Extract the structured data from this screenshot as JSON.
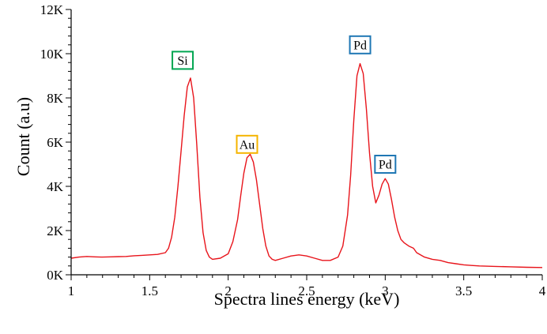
{
  "chart_data": {
    "type": "line",
    "title": "",
    "xlabel": "Spectra lines energy (keV)",
    "ylabel": "Count (a.u)",
    "xlim": [
      1,
      4
    ],
    "ylim": [
      0,
      12000
    ],
    "x_ticks": [
      {
        "value": 1,
        "label": "1"
      },
      {
        "value": 1.5,
        "label": "1.5"
      },
      {
        "value": 2,
        "label": "2"
      },
      {
        "value": 2.5,
        "label": "2.5"
      },
      {
        "value": 3,
        "label": "3"
      },
      {
        "value": 3.5,
        "label": "3.5"
      },
      {
        "value": 4,
        "label": "4"
      }
    ],
    "y_ticks": [
      {
        "value": 0,
        "label": "0K"
      },
      {
        "value": 2000,
        "label": "2K"
      },
      {
        "value": 4000,
        "label": "4K"
      },
      {
        "value": 6000,
        "label": "6K"
      },
      {
        "value": 8000,
        "label": "8K"
      },
      {
        "value": 10000,
        "label": "10K"
      },
      {
        "value": 12000,
        "label": "12K"
      }
    ],
    "grid": false,
    "legend": "none",
    "series": [
      {
        "color": "#e8141b",
        "x": [
          1.0,
          1.05,
          1.1,
          1.15,
          1.2,
          1.25,
          1.3,
          1.35,
          1.4,
          1.45,
          1.5,
          1.55,
          1.6,
          1.62,
          1.64,
          1.66,
          1.68,
          1.7,
          1.72,
          1.74,
          1.76,
          1.78,
          1.8,
          1.82,
          1.84,
          1.86,
          1.88,
          1.9,
          1.95,
          2.0,
          2.03,
          2.06,
          2.08,
          2.1,
          2.12,
          2.14,
          2.16,
          2.18,
          2.2,
          2.22,
          2.24,
          2.26,
          2.28,
          2.3,
          2.35,
          2.4,
          2.45,
          2.5,
          2.55,
          2.6,
          2.65,
          2.7,
          2.73,
          2.76,
          2.78,
          2.8,
          2.82,
          2.84,
          2.86,
          2.88,
          2.9,
          2.92,
          2.94,
          2.96,
          2.98,
          3.0,
          3.02,
          3.04,
          3.06,
          3.08,
          3.1,
          3.12,
          3.15,
          3.18,
          3.2,
          3.25,
          3.3,
          3.35,
          3.4,
          3.45,
          3.5,
          3.55,
          3.6,
          3.7,
          3.8,
          3.9,
          4.0
        ],
        "y": [
          750,
          800,
          830,
          810,
          800,
          810,
          820,
          830,
          860,
          880,
          900,
          920,
          1000,
          1200,
          1700,
          2600,
          4000,
          5600,
          7200,
          8500,
          8900,
          8000,
          5900,
          3500,
          1900,
          1100,
          800,
          700,
          750,
          950,
          1500,
          2500,
          3600,
          4600,
          5300,
          5450,
          5100,
          4300,
          3200,
          2100,
          1300,
          850,
          700,
          650,
          750,
          850,
          900,
          850,
          750,
          650,
          650,
          800,
          1300,
          2700,
          4500,
          7000,
          9000,
          9550,
          9100,
          7500,
          5500,
          4000,
          3250,
          3600,
          4100,
          4350,
          4100,
          3400,
          2600,
          2000,
          1600,
          1450,
          1300,
          1200,
          1000,
          800,
          700,
          650,
          550,
          500,
          450,
          420,
          400,
          380,
          360,
          340,
          330
        ]
      }
    ],
    "annotations": [
      {
        "text": "Si",
        "x": 1.71,
        "y": 9700,
        "color": "#00a550"
      },
      {
        "text": "Au",
        "x": 2.12,
        "y": 5900,
        "color": "#f5b400"
      },
      {
        "text": "Pd",
        "x": 2.84,
        "y": 10400,
        "color": "#1f77b4"
      },
      {
        "text": "Pd",
        "x": 3.0,
        "y": 5000,
        "color": "#1f77b4"
      }
    ]
  }
}
